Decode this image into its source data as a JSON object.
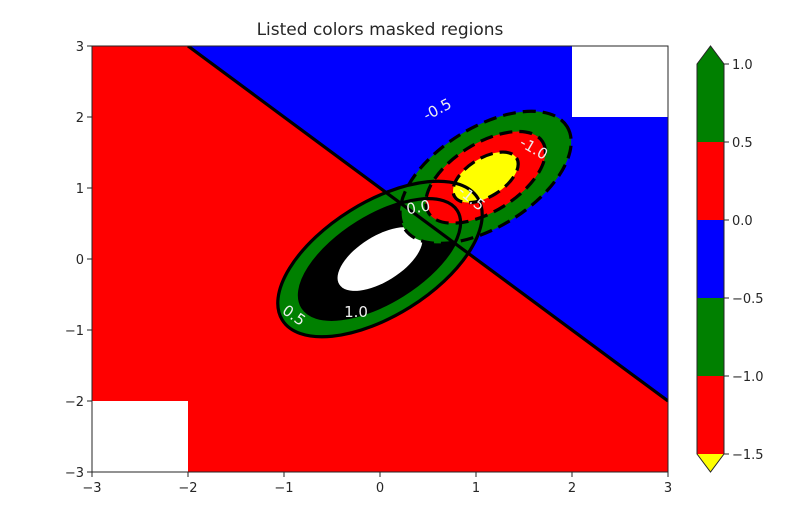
{
  "chart_data": {
    "type": "contourf",
    "title": "Listed colors masked regions",
    "xlabel": "",
    "ylabel": "",
    "xlim": [
      -3,
      3
    ],
    "ylim": [
      -3,
      3
    ],
    "x_ticks": [
      "−3",
      "−2",
      "−1",
      "0",
      "1",
      "2",
      "3"
    ],
    "y_ticks": [
      "−3",
      "−2",
      "−1",
      "0",
      "1",
      "2",
      "3"
    ],
    "x_tick_values": [
      -3,
      -2,
      -1,
      0,
      1,
      2,
      3
    ],
    "y_tick_values": [
      -3,
      -2,
      -1,
      0,
      1,
      2,
      3
    ],
    "levels": [
      -1.5,
      -1.0,
      -0.5,
      0.0,
      0.5,
      1.0
    ],
    "band_colors": [
      "#ff0000",
      "#008000",
      "#0000ff",
      "#ff0000",
      "#008000"
    ],
    "under_color": "#ffff00",
    "over_color": "#008000",
    "masked_color": "#ffffff",
    "background_upper": "#0000ff",
    "background_lower": "#ff0000",
    "zero_line": [
      [
        -2,
        3
      ],
      [
        3,
        -2
      ]
    ],
    "positive_peak": {
      "center": [
        0,
        0
      ],
      "contours": [
        {
          "level": 0.5,
          "rx": 1.2,
          "ry": 0.8,
          "style": "solid"
        },
        {
          "level": 1.0,
          "rx": 0.95,
          "ry": 0.6,
          "style": "solid"
        }
      ],
      "over_region": {
        "rx": 0.5,
        "ry": 0.32
      }
    },
    "negative_peak": {
      "center": [
        1.1,
        1.15
      ],
      "contours": [
        {
          "level": -0.5,
          "rx": 1.0,
          "ry": 0.7,
          "style": "dashed"
        },
        {
          "level": -1.0,
          "rx": 0.7,
          "ry": 0.48,
          "style": "dashed"
        },
        {
          "level": -1.5,
          "rx": 0.38,
          "ry": 0.27,
          "style": "dashed"
        }
      ]
    },
    "contour_labels": [
      {
        "text": "0.5",
        "x": -0.9,
        "y": -0.8,
        "angle": 35
      },
      {
        "text": "1.0",
        "x": -0.25,
        "y": -0.75,
        "angle": 0
      },
      {
        "text": "0.0",
        "x": 0.4,
        "y": 0.72,
        "angle": -10
      },
      {
        "text": "-0.5",
        "x": 0.6,
        "y": 2.1,
        "angle": -28
      },
      {
        "text": "-1.0",
        "x": 1.6,
        "y": 1.55,
        "angle": 30
      },
      {
        "text": "-1.5",
        "x": 0.95,
        "y": 0.85,
        "angle": 40
      }
    ],
    "masked_regions": [
      {
        "x": [
          2,
          3
        ],
        "y": [
          2,
          3
        ]
      },
      {
        "x": [
          -3,
          -2
        ],
        "y": [
          -3,
          -2
        ]
      }
    ],
    "colorbar": {
      "tick_labels": [
        "1.0",
        "0.5",
        "0.0",
        "−0.5",
        "−1.0",
        "−1.5"
      ],
      "extend": "both"
    }
  }
}
